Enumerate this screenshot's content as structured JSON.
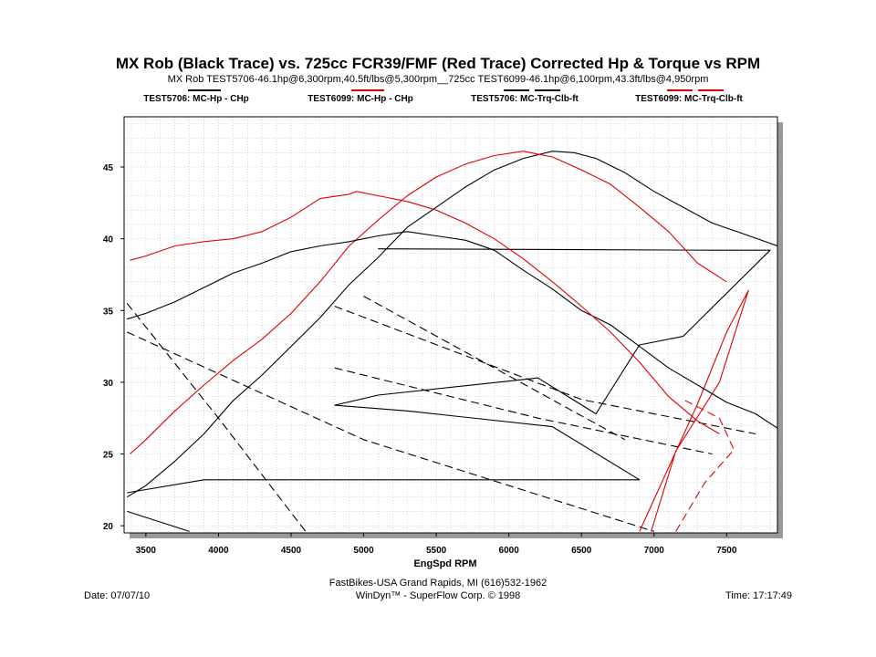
{
  "chart_data": {
    "type": "line",
    "title": "MX Rob (Black Trace) vs. 725cc FCR39/FMF (Red Trace) Corrected Hp & Torque vs RPM",
    "subtitle": "MX Rob TEST5706-46.1hp@6,300rpm,40.5ft/lbs@5,300rpm__725cc TEST6099-46.1hp@6,100rpm,43.3ft/lbs@4,950rpm",
    "xlabel": "EngSpd  RPM",
    "ylabel": "",
    "xlim": [
      3350,
      7850
    ],
    "ylim": [
      19.5,
      48.5
    ],
    "x_ticks": [
      3500,
      4000,
      4500,
      5000,
      5500,
      6000,
      6500,
      7000,
      7500
    ],
    "y_ticks": [
      20,
      25,
      30,
      35,
      40,
      45
    ],
    "grid": true,
    "legend_position": "top",
    "series": [
      {
        "name": "TEST5706: MC-Hp - CHp",
        "color": "#000000",
        "dash": "solid",
        "x": [
          3370,
          3500,
          3700,
          3900,
          4100,
          4300,
          4500,
          4700,
          4900,
          5100,
          5300,
          5500,
          5700,
          5900,
          6100,
          6300,
          6450,
          6600,
          6800,
          7000,
          7200,
          7400,
          7600,
          7850
        ],
        "y": [
          22.0,
          22.8,
          24.5,
          26.4,
          28.7,
          30.5,
          32.5,
          34.5,
          36.8,
          38.7,
          40.8,
          42.2,
          43.6,
          44.8,
          45.6,
          46.1,
          46.0,
          45.6,
          44.6,
          43.3,
          42.2,
          41.1,
          40.4,
          39.5
        ]
      },
      {
        "name": "TEST6099: MC-Hp - CHp",
        "color": "#e00000",
        "dash": "solid",
        "x": [
          3390,
          3500,
          3700,
          3900,
          4100,
          4300,
          4500,
          4700,
          4900,
          5100,
          5300,
          5500,
          5700,
          5900,
          6100,
          6200,
          6300,
          6500,
          6700,
          6900,
          7100,
          7300,
          7500
        ],
        "y": [
          25.0,
          26.0,
          28.0,
          29.8,
          31.5,
          33.0,
          34.8,
          37.0,
          39.5,
          41.3,
          43.0,
          44.3,
          45.2,
          45.8,
          46.1,
          45.9,
          45.7,
          44.8,
          43.8,
          42.2,
          40.5,
          38.3,
          37.0
        ]
      },
      {
        "name": "TEST5706: MC-Trq-Clb-ft",
        "color": "#000000",
        "dash": "solid",
        "x": [
          3370,
          3500,
          3700,
          3900,
          4100,
          4300,
          4500,
          4700,
          4900,
          5100,
          5300,
          5500,
          5700,
          5900,
          6100,
          6300,
          6500,
          6700,
          6900,
          7100,
          7300,
          7500,
          7700,
          7850
        ],
        "y": [
          34.4,
          34.8,
          35.6,
          36.6,
          37.6,
          38.3,
          39.1,
          39.5,
          39.8,
          40.2,
          40.5,
          40.2,
          39.9,
          39.2,
          37.8,
          36.5,
          35.0,
          34.0,
          32.5,
          31.0,
          29.8,
          28.6,
          27.8,
          26.8
        ]
      },
      {
        "name": "TEST6099: MC-Trq-Clb-ft",
        "color": "#e00000",
        "dash": "solid",
        "x": [
          3390,
          3500,
          3700,
          3900,
          4100,
          4300,
          4500,
          4700,
          4900,
          4950,
          5100,
          5300,
          5500,
          5700,
          5900,
          6100,
          6300,
          6500,
          6700,
          6900,
          7100,
          7300,
          7450
        ],
        "y": [
          38.5,
          38.8,
          39.5,
          39.8,
          40.0,
          40.5,
          41.5,
          42.8,
          43.1,
          43.3,
          43.0,
          42.6,
          42.0,
          41.1,
          40.0,
          38.6,
          37.0,
          35.3,
          33.5,
          31.4,
          29.0,
          27.3,
          26.4
        ]
      }
    ],
    "other_traces": [
      {
        "color": "#000000",
        "dash": "solid",
        "x": [
          3370,
          3900,
          4900,
          5800,
          6900,
          6300,
          5300,
          4800,
          5100,
          6200,
          6600,
          6900,
          7200,
          7800,
          7400,
          5100
        ],
        "y": [
          22.3,
          23.2,
          23.2,
          23.2,
          23.2,
          26.9,
          28.0,
          28.4,
          29.1,
          30.3,
          27.8,
          32.6,
          33.2,
          39.2,
          39.2,
          39.3
        ]
      },
      {
        "color": "#000000",
        "dash": "solid",
        "x": [
          3370,
          3800
        ],
        "y": [
          21.0,
          19.6
        ]
      },
      {
        "color": "#000000",
        "dash": "dashed",
        "x": [
          3370,
          4000,
          4600
        ],
        "y": [
          35.5,
          27.5,
          19.6
        ]
      },
      {
        "color": "#000000",
        "dash": "dashed",
        "x": [
          3370,
          5000,
          7000
        ],
        "y": [
          33.5,
          26.0,
          19.6
        ]
      },
      {
        "color": "#000000",
        "dash": "dashed",
        "x": [
          4800,
          6500,
          7700
        ],
        "y": [
          35.3,
          28.8,
          26.4
        ]
      },
      {
        "color": "#000000",
        "dash": "dashed",
        "x": [
          4800,
          6200,
          7400
        ],
        "y": [
          31.0,
          27.5,
          25.0
        ]
      },
      {
        "color": "#000000",
        "dash": "dashed",
        "x": [
          5000,
          6800
        ],
        "y": [
          36.0,
          26.0
        ]
      },
      {
        "color": "#e00000",
        "dash": "solid",
        "x": [
          6900,
          7300,
          7500,
          7650,
          7450,
          7150,
          6980
        ],
        "y": [
          19.6,
          28.5,
          33.5,
          36.4,
          30.0,
          25.2,
          19.6
        ]
      },
      {
        "color": "#e00000",
        "dash": "dashed",
        "x": [
          7150,
          7350,
          7550,
          7450,
          7200
        ],
        "y": [
          19.6,
          23.0,
          25.3,
          27.5,
          28.8
        ]
      }
    ]
  },
  "legend": {
    "items": [
      {
        "label": "TEST5706: MC-Hp - CHp",
        "color": "#000000",
        "swatch": "single"
      },
      {
        "label": "TEST6099: MC-Hp - CHp",
        "color": "#e00000",
        "swatch": "single"
      },
      {
        "label": "TEST5706: MC-Trq-Clb-ft",
        "color": "#000000",
        "swatch": "double"
      },
      {
        "label": "TEST6099: MC-Trq-Clb-ft",
        "color": "#e00000",
        "swatch": "double"
      }
    ]
  },
  "footer": {
    "shop": "FastBikes-USA Grand Rapids, MI (616)532-1962",
    "software": "WinDyn™ - SuperFlow Corp. © 1998",
    "date": "Date: 07/07/10",
    "time": "Time: 17:17:49"
  }
}
